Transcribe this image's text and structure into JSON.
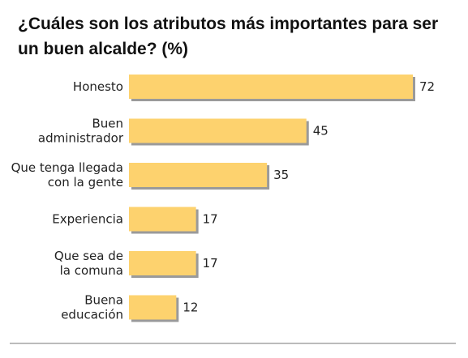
{
  "chart_data": {
    "type": "bar",
    "orientation": "horizontal",
    "title": "¿Cuáles son los atributos más importantes para ser un buen alcalde? (%)",
    "categories": [
      [
        "Honesto"
      ],
      [
        "Buen",
        "administrador"
      ],
      [
        "Que tenga llegada",
        "con la gente"
      ],
      [
        "Experiencia"
      ],
      [
        "Que sea de",
        "la comuna"
      ],
      [
        "Buena",
        "educación"
      ]
    ],
    "values": [
      72,
      45,
      35,
      17,
      17,
      12
    ],
    "xlim": [
      0,
      72
    ],
    "bar_color": "#FDD26E",
    "bar_shadow_color": "#9A9A9A",
    "grid": false,
    "legend": "none"
  }
}
